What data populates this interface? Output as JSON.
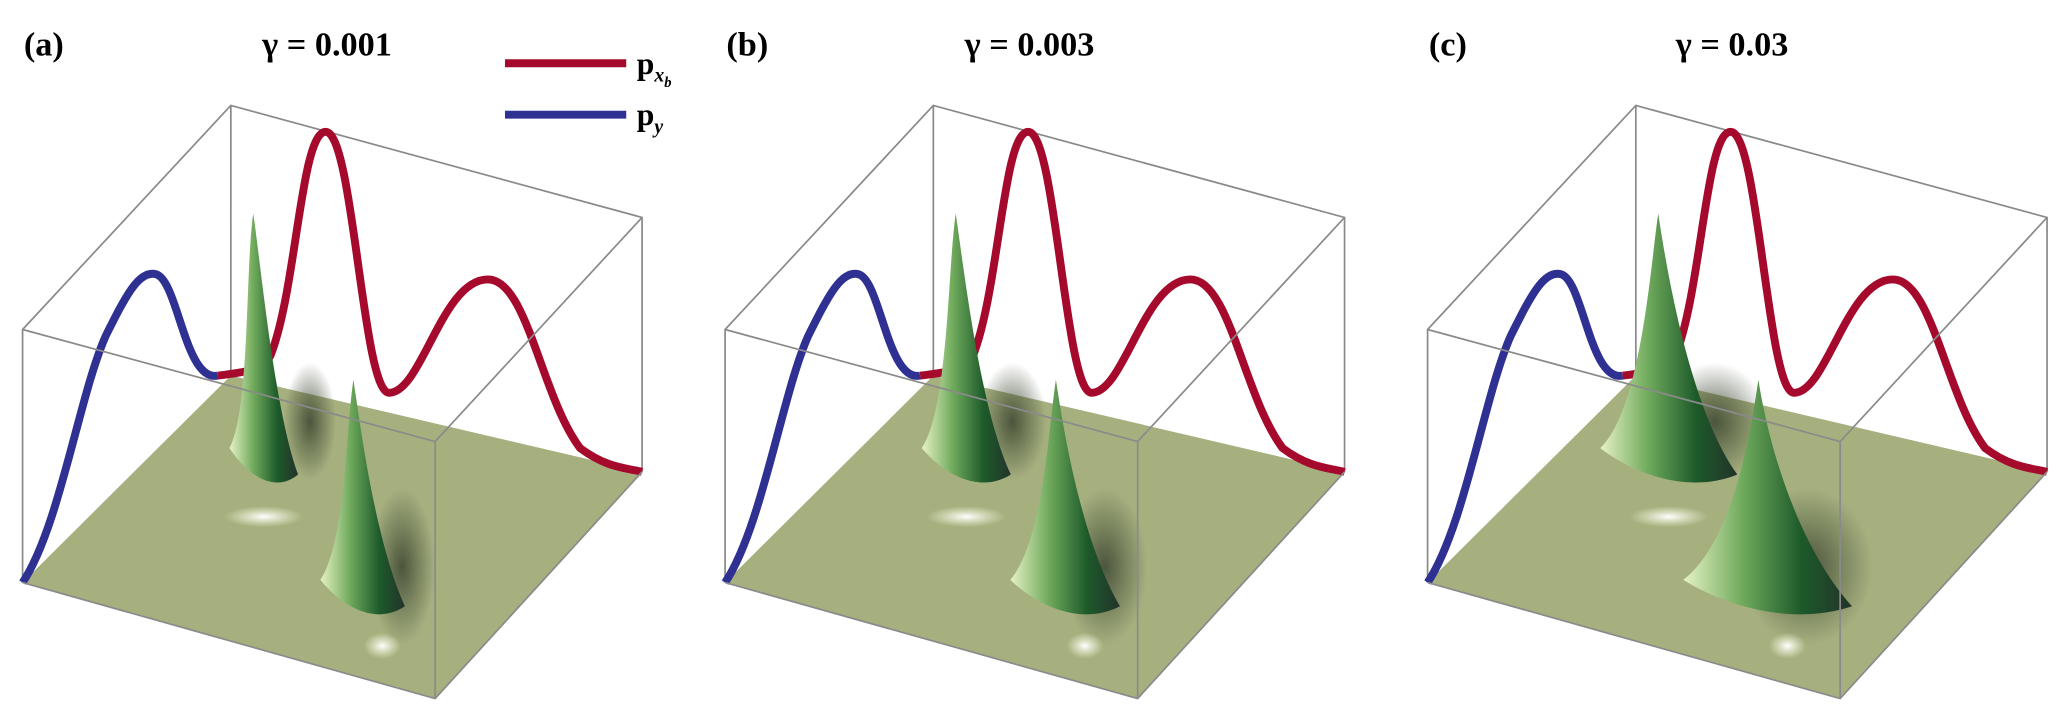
{
  "panels": [
    {
      "label": "(a)",
      "title": "γ = 0.001"
    },
    {
      "label": "(b)",
      "title": "γ = 0.003"
    },
    {
      "label": "(c)",
      "title": "γ = 0.03"
    }
  ],
  "legend": [
    {
      "symbol": "p",
      "sub": "x",
      "subsub": "b",
      "color": "#a50a2d"
    },
    {
      "symbol": "p",
      "sub": "y",
      "color": "#2e3192"
    }
  ]
}
